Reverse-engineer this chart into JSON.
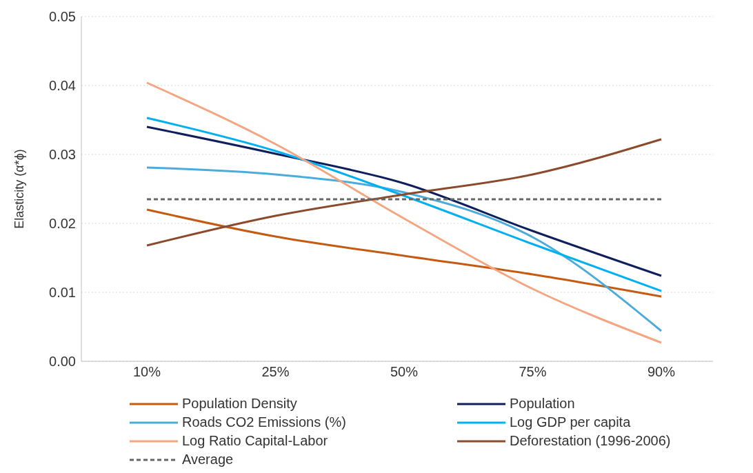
{
  "chart_data": {
    "type": "line",
    "ylabel": "Elasticity (α*ϕ)",
    "categories": [
      "10%",
      "25%",
      "50%",
      "75%",
      "90%"
    ],
    "series": [
      {
        "name": "Population Density",
        "color": "#c55a11",
        "values": [
          0.022,
          0.0181,
          0.0153,
          0.0126,
          0.0094
        ]
      },
      {
        "name": "Population",
        "color": "#0e1f5b",
        "values": [
          0.034,
          0.0301,
          0.0258,
          0.0189,
          0.0124
        ]
      },
      {
        "name": "Roads CO2 Emissions (%)",
        "color": "#4bacdc",
        "values": [
          0.0281,
          0.0271,
          0.0245,
          0.018,
          0.0044
        ]
      },
      {
        "name": "Log GDP per capita",
        "color": "#00b0f0",
        "values": [
          0.0353,
          0.0305,
          0.024,
          0.017,
          0.0102
        ]
      },
      {
        "name": "Log Ratio Capital-Labor",
        "color": "#f4a582",
        "values": [
          0.0404,
          0.0315,
          0.0207,
          0.0105,
          0.0027
        ]
      },
      {
        "name": "Deforestation (1996-2006)",
        "color": "#8b4a2b",
        "values": [
          0.0168,
          0.0211,
          0.0242,
          0.0271,
          0.0322
        ]
      },
      {
        "name": "Average",
        "color": "#666666",
        "line_style": "dashed",
        "values": [
          0.0235,
          0.0235,
          0.0235,
          0.0235,
          0.0235
        ]
      }
    ],
    "ylim": [
      0,
      0.05
    ],
    "yticks": [
      {
        "value": 0,
        "label": "0.00"
      },
      0.01,
      0.02,
      0.03,
      0.04,
      0.05
    ],
    "grid": "y",
    "legend": "bottom",
    "marker": "none",
    "line_style": "solid"
  }
}
